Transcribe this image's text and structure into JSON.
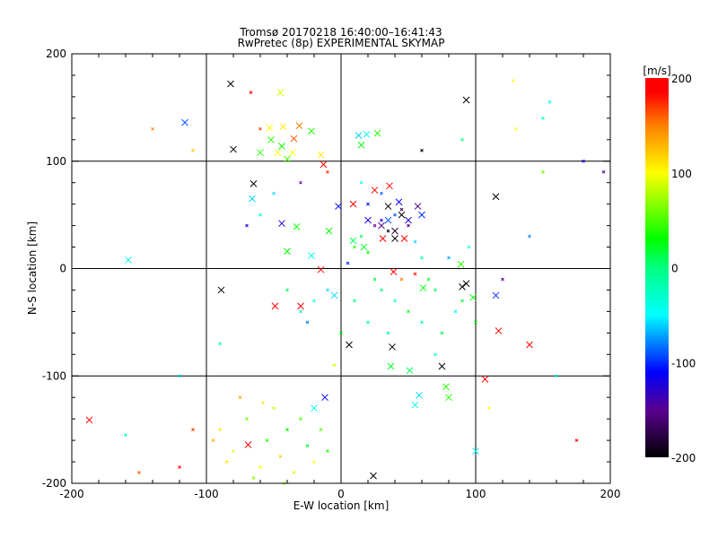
{
  "chart_data": {
    "type": "scatter",
    "title": "Tromsø 20170218 16:40:00–16:41:43",
    "subtitle": "RwPretec (8p) EXPERIMENTAL SKYMAP",
    "xlabel": "E-W location [km]",
    "ylabel": "N-S location [km]",
    "xlim": [
      -200,
      200
    ],
    "ylim": [
      -200,
      200
    ],
    "xticks": [
      "-200",
      "-100",
      "0",
      "100",
      "200"
    ],
    "yticks": [
      "-200",
      "-100",
      "0",
      "100",
      "200"
    ],
    "grid_values": [
      -100,
      0,
      100
    ],
    "colorbar": {
      "label": "[m/s]",
      "range": [
        -200,
        200
      ],
      "ticks": [
        "-200",
        "-100",
        "0",
        "100",
        "200"
      ]
    },
    "point_fields": [
      "x_km",
      "y_km",
      "velocity_m_s",
      "marker"
    ],
    "points": [
      [
        -82,
        172,
        -200,
        "x"
      ],
      [
        93,
        157,
        -200,
        "x"
      ],
      [
        -116,
        136,
        -90,
        "x"
      ],
      [
        -45,
        164,
        90,
        "x"
      ],
      [
        -13,
        97,
        190,
        "x"
      ],
      [
        -80,
        111,
        -200,
        "x"
      ],
      [
        -65,
        79,
        -200,
        "x"
      ],
      [
        115,
        67,
        -200,
        "x"
      ],
      [
        -187,
        -141,
        180,
        "x"
      ],
      [
        -158,
        8,
        -40,
        "x"
      ],
      [
        -89,
        -20,
        -200,
        "x"
      ],
      [
        -30,
        -35,
        190,
        "x"
      ],
      [
        -49,
        -35,
        190,
        "x"
      ],
      [
        -15,
        -1,
        190,
        "x"
      ],
      [
        6,
        -71,
        -200,
        "x"
      ],
      [
        38,
        -73,
        -200,
        "x"
      ],
      [
        75,
        -91,
        -200,
        "x"
      ],
      [
        107,
        -103,
        190,
        "x"
      ],
      [
        117,
        -58,
        190,
        "x"
      ],
      [
        140,
        -71,
        190,
        "x"
      ],
      [
        115,
        -25,
        -100,
        "x"
      ],
      [
        93,
        -14,
        -200,
        "x"
      ],
      [
        90,
        -17,
        -200,
        "x"
      ],
      [
        98,
        -27,
        30,
        "x"
      ],
      [
        78,
        -110,
        40,
        "x"
      ],
      [
        80,
        -120,
        40,
        "x"
      ],
      [
        58,
        -118,
        -60,
        "x"
      ],
      [
        55,
        -127,
        -40,
        "x"
      ],
      [
        37,
        -91,
        20,
        "x"
      ],
      [
        51,
        -95,
        10,
        "x"
      ],
      [
        24,
        -193,
        -200,
        "x"
      ],
      [
        100,
        -170,
        -50,
        "x"
      ],
      [
        -12,
        -120,
        -110,
        "x"
      ],
      [
        -20,
        -130,
        -50,
        "x"
      ],
      [
        -69,
        -164,
        190,
        "x"
      ],
      [
        -66,
        65,
        -60,
        "x"
      ],
      [
        -44,
        42,
        -120,
        "x"
      ],
      [
        -33,
        39,
        30,
        "x"
      ],
      [
        -40,
        16,
        30,
        "x"
      ],
      [
        -22,
        12,
        -40,
        "x"
      ],
      [
        57,
        58,
        -160,
        "x"
      ],
      [
        43,
        62,
        -110,
        "x"
      ],
      [
        31,
        28,
        190,
        "x"
      ],
      [
        47,
        28,
        190,
        "x"
      ],
      [
        25,
        73,
        190,
        "x"
      ],
      [
        9,
        60,
        190,
        "x"
      ],
      [
        -2,
        58,
        -110,
        "x"
      ],
      [
        -9,
        35,
        30,
        "x"
      ],
      [
        17,
        20,
        20,
        "x"
      ],
      [
        9,
        26,
        10,
        "x"
      ],
      [
        35,
        58,
        -200,
        "x"
      ],
      [
        40,
        28,
        -200,
        "x"
      ],
      [
        13,
        124,
        -60,
        "x"
      ],
      [
        19,
        125,
        -40,
        "x"
      ],
      [
        27,
        126,
        40,
        "x"
      ],
      [
        36,
        77,
        190,
        "x"
      ],
      [
        15,
        115,
        30,
        "x"
      ],
      [
        39,
        -3,
        190,
        "x"
      ],
      [
        61,
        -18,
        30,
        "x"
      ],
      [
        89,
        4,
        40,
        "x"
      ],
      [
        -31,
        133,
        150,
        "x"
      ],
      [
        -35,
        121,
        160,
        "x"
      ],
      [
        -43,
        132,
        110,
        "x"
      ],
      [
        -53,
        131,
        100,
        "x"
      ],
      [
        -47,
        108,
        100,
        "x"
      ],
      [
        -40,
        102,
        50,
        "x"
      ],
      [
        -22,
        128,
        40,
        "x"
      ],
      [
        -15,
        106,
        110,
        "x"
      ],
      [
        -60,
        108,
        40,
        "x"
      ],
      [
        -52,
        120,
        40,
        "x"
      ],
      [
        -44,
        114,
        30,
        "x"
      ],
      [
        -36,
        108,
        100,
        "x"
      ],
      [
        30,
        40,
        -150,
        "x"
      ],
      [
        40,
        35,
        -180,
        "x"
      ],
      [
        50,
        45,
        -130,
        "x"
      ],
      [
        60,
        50,
        -100,
        "x"
      ],
      [
        20,
        45,
        -120,
        "x"
      ],
      [
        45,
        50,
        -200,
        "x"
      ],
      [
        35,
        45,
        -90,
        "x"
      ],
      [
        -5,
        -25,
        -60,
        "x"
      ],
      [
        -90,
        -150,
        110,
        "d"
      ],
      [
        -80,
        -170,
        90,
        "d"
      ],
      [
        -70,
        -140,
        60,
        "d"
      ],
      [
        -60,
        -185,
        100,
        "d"
      ],
      [
        -55,
        -160,
        40,
        "d"
      ],
      [
        -50,
        -130,
        80,
        "d"
      ],
      [
        -45,
        -175,
        120,
        "d"
      ],
      [
        -40,
        -150,
        30,
        "d"
      ],
      [
        -35,
        -190,
        90,
        "d"
      ],
      [
        -30,
        -140,
        50,
        "d"
      ],
      [
        -25,
        -165,
        20,
        "d"
      ],
      [
        -20,
        -180,
        100,
        "d"
      ],
      [
        -65,
        -195,
        70,
        "d"
      ],
      [
        -75,
        -120,
        140,
        "d"
      ],
      [
        -85,
        -180,
        110,
        "d"
      ],
      [
        -95,
        -160,
        130,
        "d"
      ],
      [
        -15,
        -150,
        60,
        "d"
      ],
      [
        -10,
        -170,
        40,
        "d"
      ],
      [
        -58,
        -125,
        110,
        "d"
      ],
      [
        -42,
        -200,
        80,
        "d"
      ],
      [
        10,
        20,
        40,
        "d"
      ],
      [
        15,
        30,
        10,
        "d"
      ],
      [
        20,
        15,
        30,
        "d"
      ],
      [
        25,
        40,
        -150,
        "d"
      ],
      [
        30,
        45,
        -120,
        "d"
      ],
      [
        35,
        35,
        -200,
        "d"
      ],
      [
        40,
        50,
        -90,
        "d"
      ],
      [
        45,
        55,
        -180,
        "d"
      ],
      [
        50,
        40,
        -160,
        "d"
      ],
      [
        55,
        25,
        -60,
        "d"
      ],
      [
        60,
        10,
        -20,
        "d"
      ],
      [
        65,
        -10,
        20,
        "d"
      ],
      [
        70,
        -20,
        10,
        "d"
      ],
      [
        30,
        -20,
        0,
        "d"
      ],
      [
        40,
        -30,
        -30,
        "d"
      ],
      [
        50,
        -40,
        20,
        "d"
      ],
      [
        20,
        -50,
        -20,
        "d"
      ],
      [
        10,
        -30,
        0,
        "d"
      ],
      [
        0,
        -60,
        30,
        "d"
      ],
      [
        60,
        -50,
        -10,
        "d"
      ],
      [
        75,
        -60,
        10,
        "d"
      ],
      [
        85,
        -40,
        -50,
        "d"
      ],
      [
        90,
        -30,
        20,
        "d"
      ],
      [
        80,
        10,
        -70,
        "d"
      ],
      [
        95,
        20,
        -40,
        "d"
      ],
      [
        5,
        5,
        -100,
        "d"
      ],
      [
        -10,
        -20,
        -60,
        "d"
      ],
      [
        -20,
        -30,
        -40,
        "d"
      ],
      [
        -30,
        -40,
        -20,
        "d"
      ],
      [
        -25,
        -50,
        -80,
        "d"
      ],
      [
        -40,
        -20,
        10,
        "d"
      ],
      [
        20,
        60,
        -110,
        "d"
      ],
      [
        30,
        70,
        -90,
        "d"
      ],
      [
        15,
        80,
        -50,
        "d"
      ],
      [
        45,
        -10,
        150,
        "d"
      ],
      [
        55,
        -5,
        180,
        "d"
      ],
      [
        25,
        -10,
        10,
        "d"
      ],
      [
        35,
        -60,
        -10,
        "d"
      ],
      [
        70,
        -80,
        -30,
        "d"
      ],
      [
        -5,
        -90,
        90,
        "d"
      ],
      [
        110,
        -130,
        100,
        "d"
      ],
      [
        100,
        -50,
        30,
        "d"
      ],
      [
        -50,
        70,
        -60,
        "d"
      ],
      [
        -60,
        50,
        -40,
        "d"
      ],
      [
        -70,
        40,
        -120,
        "d"
      ],
      [
        -30,
        80,
        -150,
        "d"
      ],
      [
        -10,
        90,
        170,
        "d"
      ],
      [
        60,
        110,
        -200,
        "d"
      ],
      [
        90,
        120,
        0,
        "d"
      ],
      [
        130,
        130,
        100,
        "d"
      ],
      [
        150,
        140,
        -30,
        "d"
      ],
      [
        160,
        -100,
        -50,
        "d"
      ],
      [
        175,
        -160,
        190,
        "d"
      ],
      [
        140,
        30,
        -80,
        "d"
      ],
      [
        120,
        -10,
        -150,
        "d"
      ],
      [
        -110,
        -150,
        170,
        "d"
      ],
      [
        -150,
        -190,
        160,
        "d"
      ],
      [
        -160,
        -155,
        -20,
        "d"
      ],
      [
        -90,
        -70,
        -20,
        "d"
      ],
      [
        -120,
        -100,
        -60,
        "d"
      ],
      [
        -140,
        130,
        150,
        "d"
      ],
      [
        -110,
        110,
        120,
        "d"
      ],
      [
        -60,
        130,
        170,
        "d"
      ],
      [
        150,
        90,
        60,
        "d"
      ],
      [
        180,
        100,
        -120,
        "d"
      ],
      [
        195,
        90,
        -150,
        "d"
      ],
      [
        -120,
        -185,
        190,
        "d"
      ],
      [
        128,
        175,
        100,
        "d"
      ],
      [
        155,
        155,
        -50,
        "d"
      ],
      [
        -67,
        164,
        190,
        "d"
      ]
    ],
    "colors": {
      "stops": [
        [
          -200,
          "#000000"
        ],
        [
          -150,
          "#5a0090"
        ],
        [
          -110,
          "#0000ff"
        ],
        [
          -50,
          "#00ffff"
        ],
        [
          0,
          "#00ff80"
        ],
        [
          30,
          "#00ff00"
        ],
        [
          100,
          "#ffff00"
        ],
        [
          150,
          "#ff8000"
        ],
        [
          185,
          "#ff0000"
        ],
        [
          200,
          "#ff0000"
        ]
      ]
    }
  }
}
